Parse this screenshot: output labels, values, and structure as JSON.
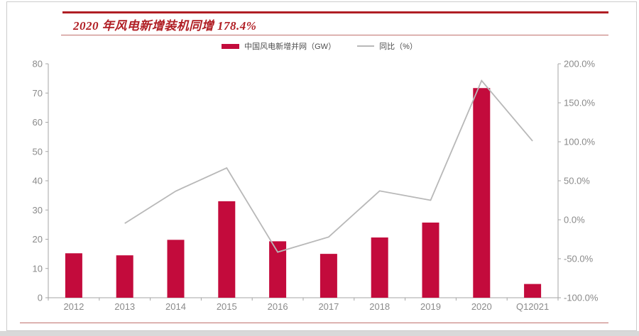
{
  "header": {
    "title": "2020 年风电新增装机同增 178.4%"
  },
  "legend": {
    "items": [
      {
        "label": "中国风电新增并网（GW）",
        "swatch": "bar-swatch",
        "color": "#c30b3c"
      },
      {
        "label": "同比（%）",
        "swatch": "line-swatch",
        "color": "#b8b8b8"
      }
    ]
  },
  "colors": {
    "bar": "#c30b3c",
    "line": "#b8b8b8",
    "axis": "#a6a6a6",
    "tick_text": "#8a8a8a",
    "title_red": "#b01e24",
    "rule_thick": "#b01e24",
    "rule_thin": "#c0716d",
    "page_border": "#cccccc",
    "bottom_band": "#d9d9d9"
  },
  "chart_data": {
    "type": "combo",
    "title": "2020 年风电新增装机同增 178.4%",
    "categories": [
      "2012",
      "2013",
      "2014",
      "2015",
      "2016",
      "2017",
      "2018",
      "2019",
      "2020",
      "Q12021"
    ],
    "series": [
      {
        "name": "中国风电新增并网（GW）",
        "type": "bar",
        "axis": "left",
        "values": [
          15.2,
          14.5,
          19.8,
          33.0,
          19.3,
          15.0,
          20.6,
          25.7,
          71.7,
          4.7
        ]
      },
      {
        "name": "同比（%）",
        "type": "line",
        "axis": "right",
        "values": [
          null,
          -4.7,
          36.7,
          66.4,
          -41.5,
          -22.1,
          37.0,
          25.0,
          178.4,
          101.0
        ]
      }
    ],
    "left_axis": {
      "min": 0,
      "max": 80,
      "step": 10,
      "tick_labels": [
        "80",
        "70",
        "60",
        "50",
        "40",
        "30",
        "20",
        "10",
        "0"
      ]
    },
    "right_axis": {
      "min": -100,
      "max": 200,
      "step": 50,
      "tick_labels": [
        "200.0%",
        "150.0%",
        "100.0%",
        "50.0%",
        "0.0%",
        "-50.0%",
        "-100.0%"
      ]
    },
    "grid": false,
    "legend_position": "top"
  }
}
